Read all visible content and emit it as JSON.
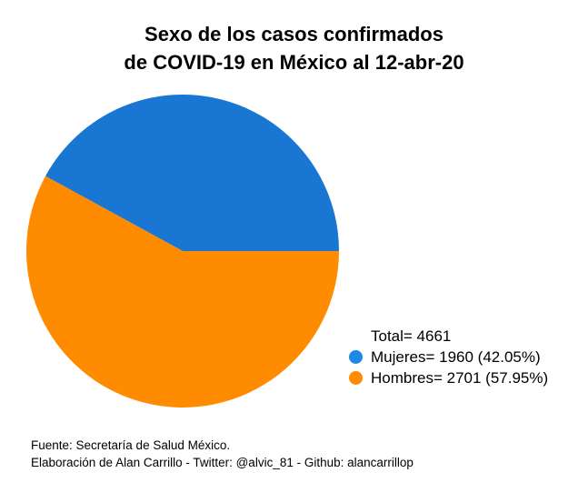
{
  "chart_data": {
    "type": "pie",
    "title_lines": [
      "Sexo de los casos confirmados",
      "de COVID-19 en México al 12-abr-20"
    ],
    "total_label": "Total= 4661",
    "slices": [
      {
        "name": "Mujeres",
        "value": 1960,
        "percent": 42.05,
        "label": "Mujeres= 1960 (42.05%)",
        "color": "#1976d2",
        "legend_color": "#1e88e5"
      },
      {
        "name": "Hombres",
        "value": 2701,
        "percent": 57.95,
        "label": "Hombres= 2701 (57.95%)",
        "color": "#ff8c00",
        "legend_color": "#ff8c00"
      }
    ],
    "start_angle_deg": 0,
    "direction": "counterclockwise",
    "legend_position": "bottom-right"
  },
  "footer": {
    "source": "Fuente: Secretaría de Salud México.",
    "credits": "Elaboración de Alan Carrillo - Twitter: @alvic_81 - Github: alancarrillop"
  }
}
